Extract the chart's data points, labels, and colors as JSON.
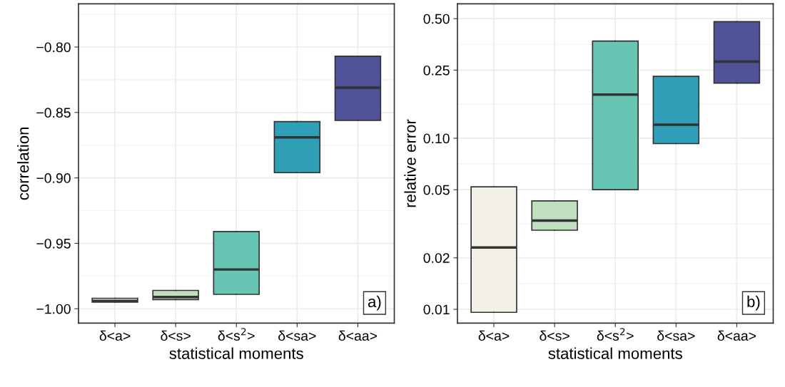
{
  "chart_data": [
    {
      "type": "box",
      "xlabel": "statistical moments",
      "ylabel": "correlation",
      "categories": [
        "δ<a>",
        "δ<s>",
        "δ<s$^{2}$>",
        "δ<sa>",
        "δ<aa>"
      ],
      "colors": [
        "#f2f0e6",
        "#bfdfbf",
        "#66c5b3",
        "#30a0b8",
        "#4f5299"
      ],
      "boxes": [
        {
          "low": -0.995,
          "q1": -0.995,
          "median": -0.994,
          "q3": -0.992,
          "high": -0.992
        },
        {
          "low": -0.993,
          "q1": -0.993,
          "median": -0.991,
          "q3": -0.986,
          "high": -0.986
        },
        {
          "low": -0.989,
          "q1": -0.989,
          "median": -0.97,
          "q3": -0.941,
          "high": -0.941
        },
        {
          "low": -0.896,
          "q1": -0.896,
          "median": -0.869,
          "q3": -0.857,
          "high": -0.857
        },
        {
          "low": -0.856,
          "q1": -0.856,
          "median": -0.831,
          "q3": -0.807,
          "high": -0.807
        }
      ],
      "ylim": [
        -1.011,
        -0.767
      ],
      "yticks": [
        {
          "value": -1.0,
          "label": "−1.00"
        },
        {
          "value": -0.95,
          "label": "−0.95"
        },
        {
          "value": -0.9,
          "label": "−0.90"
        },
        {
          "value": -0.85,
          "label": "−0.85"
        },
        {
          "value": -0.8,
          "label": "−0.80"
        }
      ],
      "grid": true,
      "annotations": [
        "a)"
      ]
    },
    {
      "type": "box",
      "xlabel": "statistical moments",
      "ylabel": "relative error",
      "categories": [
        "δ<a>",
        "δ<s>",
        "δ<s$^{2}$>",
        "δ<sa>",
        "δ<aa>"
      ],
      "colors": [
        "#f2f0e6",
        "#bfdfbf",
        "#66c5b3",
        "#30a0b8",
        "#4f5299"
      ],
      "boxes": [
        {
          "low": 0.0096,
          "q1": 0.0096,
          "median": 0.023,
          "q3": 0.052,
          "high": 0.052
        },
        {
          "low": 0.029,
          "q1": 0.029,
          "median": 0.033,
          "q3": 0.043,
          "high": 0.043
        },
        {
          "low": 0.05,
          "q1": 0.05,
          "median": 0.18,
          "q3": 0.37,
          "high": 0.37
        },
        {
          "low": 0.093,
          "q1": 0.093,
          "median": 0.12,
          "q3": 0.23,
          "high": 0.23
        },
        {
          "low": 0.21,
          "q1": 0.21,
          "median": 0.28,
          "q3": 0.48,
          "high": 0.48
        }
      ],
      "log": "y",
      "ylim": [
        0.0083,
        0.61
      ],
      "yticks": [
        {
          "value": 0.01,
          "label": "0.01"
        },
        {
          "value": 0.02,
          "label": "0.02"
        },
        {
          "value": 0.05,
          "label": "0.05"
        },
        {
          "value": 0.1,
          "label": "0.10"
        },
        {
          "value": 0.25,
          "label": "0.25"
        },
        {
          "value": 0.5,
          "label": "0.50"
        }
      ],
      "grid": true,
      "annotations": [
        "b)"
      ]
    }
  ]
}
